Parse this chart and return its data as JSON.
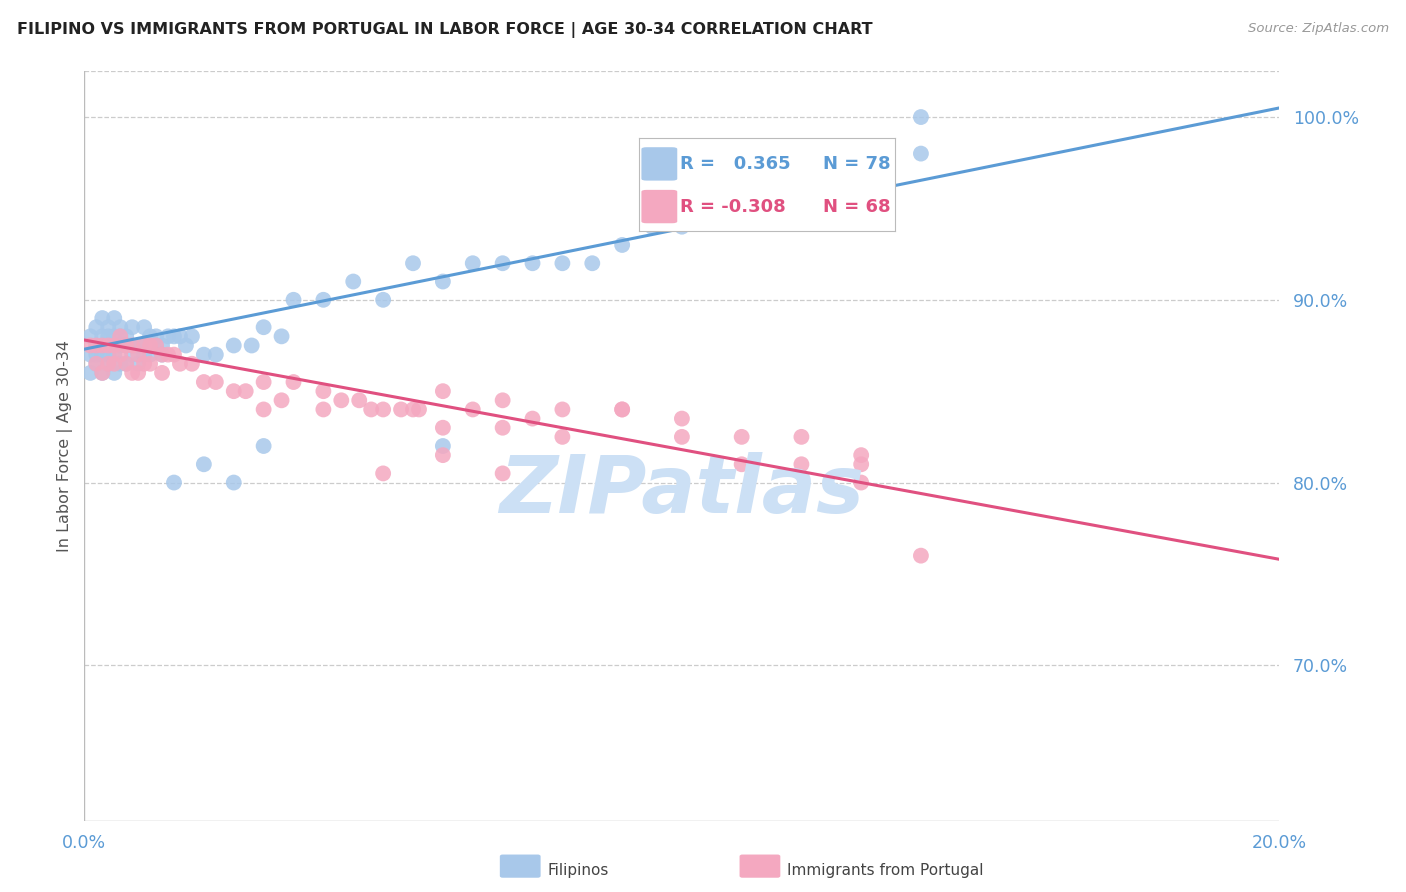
{
  "title": "FILIPINO VS IMMIGRANTS FROM PORTUGAL IN LABOR FORCE | AGE 30-34 CORRELATION CHART",
  "source": "Source: ZipAtlas.com",
  "ylabel": "In Labor Force | Age 30-34",
  "xlim": [
    0.0,
    0.2
  ],
  "ylim": [
    0.615,
    1.025
  ],
  "yticks": [
    0.7,
    0.8,
    0.9,
    1.0
  ],
  "ytick_labels": [
    "70.0%",
    "80.0%",
    "90.0%",
    "100.0%"
  ],
  "xticks": [
    0.0,
    0.05,
    0.1,
    0.15,
    0.2
  ],
  "xtick_labels": [
    "0.0%",
    "",
    "",
    "",
    "20.0%"
  ],
  "blue_scatter_x": [
    0.001,
    0.001,
    0.001,
    0.002,
    0.002,
    0.002,
    0.002,
    0.003,
    0.003,
    0.003,
    0.003,
    0.003,
    0.004,
    0.004,
    0.004,
    0.004,
    0.004,
    0.005,
    0.005,
    0.005,
    0.005,
    0.006,
    0.006,
    0.006,
    0.006,
    0.007,
    0.007,
    0.007,
    0.008,
    0.008,
    0.008,
    0.009,
    0.009,
    0.01,
    0.01,
    0.01,
    0.011,
    0.011,
    0.012,
    0.012,
    0.013,
    0.013,
    0.014,
    0.015,
    0.016,
    0.017,
    0.018,
    0.02,
    0.022,
    0.025,
    0.028,
    0.03,
    0.033,
    0.035,
    0.04,
    0.045,
    0.05,
    0.055,
    0.06,
    0.065,
    0.07,
    0.075,
    0.08,
    0.085,
    0.09,
    0.095,
    0.1,
    0.105,
    0.11,
    0.12,
    0.13,
    0.14,
    0.015,
    0.02,
    0.025,
    0.03,
    0.06,
    0.14
  ],
  "blue_scatter_y": [
    0.87,
    0.88,
    0.86,
    0.875,
    0.865,
    0.885,
    0.87,
    0.88,
    0.87,
    0.89,
    0.86,
    0.875,
    0.88,
    0.865,
    0.875,
    0.885,
    0.87,
    0.88,
    0.87,
    0.89,
    0.86,
    0.88,
    0.875,
    0.865,
    0.885,
    0.875,
    0.865,
    0.88,
    0.875,
    0.87,
    0.885,
    0.875,
    0.865,
    0.885,
    0.875,
    0.87,
    0.88,
    0.87,
    0.88,
    0.875,
    0.875,
    0.87,
    0.88,
    0.88,
    0.88,
    0.875,
    0.88,
    0.87,
    0.87,
    0.875,
    0.875,
    0.885,
    0.88,
    0.9,
    0.9,
    0.91,
    0.9,
    0.92,
    0.91,
    0.92,
    0.92,
    0.92,
    0.92,
    0.92,
    0.93,
    0.94,
    0.94,
    0.95,
    0.95,
    0.96,
    0.97,
    0.98,
    0.8,
    0.81,
    0.8,
    0.82,
    0.82,
    1.0
  ],
  "pink_scatter_x": [
    0.001,
    0.002,
    0.002,
    0.003,
    0.003,
    0.004,
    0.004,
    0.005,
    0.005,
    0.006,
    0.006,
    0.007,
    0.007,
    0.008,
    0.008,
    0.009,
    0.009,
    0.01,
    0.01,
    0.011,
    0.011,
    0.012,
    0.013,
    0.013,
    0.014,
    0.015,
    0.016,
    0.018,
    0.02,
    0.022,
    0.025,
    0.027,
    0.03,
    0.033,
    0.035,
    0.04,
    0.043,
    0.046,
    0.05,
    0.053,
    0.056,
    0.06,
    0.065,
    0.07,
    0.075,
    0.08,
    0.09,
    0.1,
    0.11,
    0.12,
    0.13,
    0.14,
    0.03,
    0.04,
    0.048,
    0.055,
    0.06,
    0.07,
    0.08,
    0.09,
    0.1,
    0.11,
    0.12,
    0.13,
    0.05,
    0.06,
    0.07,
    0.13
  ],
  "pink_scatter_y": [
    0.875,
    0.875,
    0.865,
    0.875,
    0.86,
    0.875,
    0.865,
    0.875,
    0.865,
    0.88,
    0.87,
    0.875,
    0.865,
    0.875,
    0.86,
    0.87,
    0.86,
    0.875,
    0.865,
    0.875,
    0.865,
    0.875,
    0.87,
    0.86,
    0.87,
    0.87,
    0.865,
    0.865,
    0.855,
    0.855,
    0.85,
    0.85,
    0.855,
    0.845,
    0.855,
    0.85,
    0.845,
    0.845,
    0.84,
    0.84,
    0.84,
    0.85,
    0.84,
    0.845,
    0.835,
    0.84,
    0.84,
    0.835,
    0.825,
    0.825,
    0.815,
    0.76,
    0.84,
    0.84,
    0.84,
    0.84,
    0.83,
    0.83,
    0.825,
    0.84,
    0.825,
    0.81,
    0.81,
    0.81,
    0.805,
    0.815,
    0.805,
    0.8
  ],
  "blue_line_x": [
    0.0,
    0.2
  ],
  "blue_line_y": [
    0.873,
    1.005
  ],
  "pink_line_x": [
    0.0,
    0.2
  ],
  "pink_line_y": [
    0.878,
    0.758
  ],
  "blue_color": "#5b9bd5",
  "pink_color": "#e05080",
  "blue_scatter_color": "#a8c8ea",
  "pink_scatter_color": "#f4a8c0",
  "grid_color": "#cccccc",
  "tick_color": "#5b9bd5",
  "background_color": "#ffffff",
  "watermark": "ZIPatlas",
  "watermark_color": "#cce0f5",
  "legend_blue_label_r": "R =   0.365",
  "legend_blue_label_n": "N = 78",
  "legend_pink_label_r": "R = -0.308",
  "legend_pink_label_n": "N = 68"
}
